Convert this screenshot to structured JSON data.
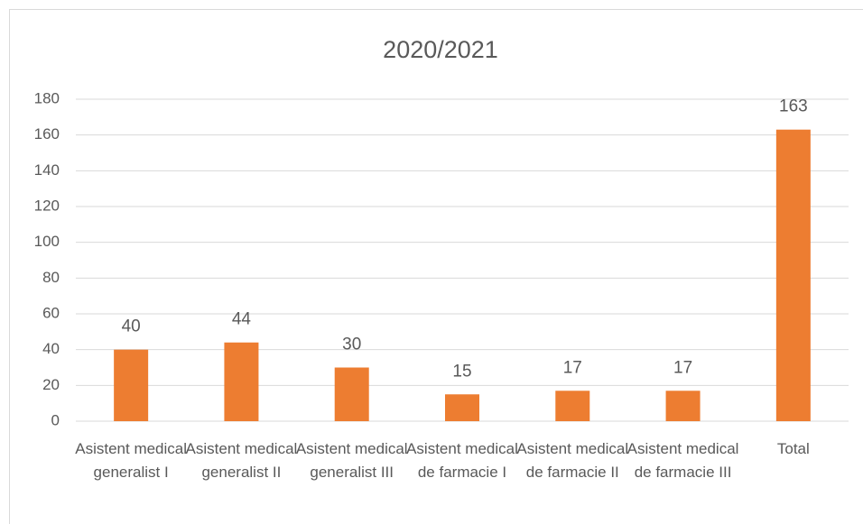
{
  "chart_data": {
    "type": "bar",
    "title": "2020/2021",
    "categories": [
      "Asistent medical generalist I",
      "Asistent medical generalist II",
      "Asistent medical generalist III",
      "Asistent medical de farmacie I",
      "Asistent medical de farmacie II",
      "Asistent medical de farmacie III",
      "Total"
    ],
    "values": [
      40,
      44,
      30,
      15,
      17,
      17,
      163
    ],
    "color": "#ed7d31",
    "ylim": [
      0,
      180
    ],
    "yticks": [
      0,
      20,
      40,
      60,
      80,
      100,
      120,
      140,
      160,
      180
    ],
    "grid": true
  }
}
